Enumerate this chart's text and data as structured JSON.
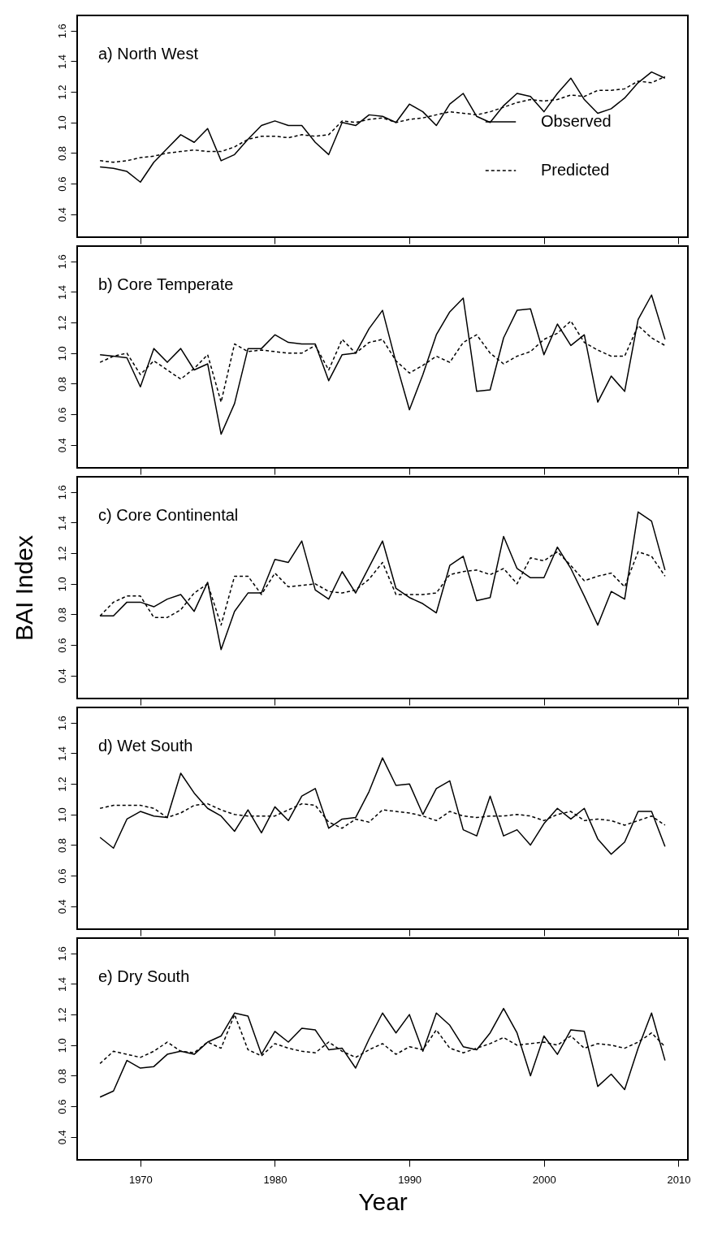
{
  "chart_data": [
    {
      "type": "line",
      "title": "a) North West",
      "x": [
        1967,
        1968,
        1969,
        1970,
        1971,
        1972,
        1973,
        1974,
        1975,
        1976,
        1977,
        1978,
        1979,
        1980,
        1981,
        1982,
        1983,
        1984,
        1985,
        1986,
        1987,
        1988,
        1989,
        1990,
        1991,
        1992,
        1993,
        1994,
        1995,
        1996,
        1997,
        1998,
        1999,
        2000,
        2001,
        2002,
        2003,
        2004,
        2005,
        2006,
        2007,
        2008,
        2009
      ],
      "xlim": [
        1965.3,
        2010.7
      ],
      "xticks": [
        1970,
        1980,
        1990,
        2000,
        2010
      ],
      "ylim": [
        0.25,
        1.7
      ],
      "yticks": [
        {
          "value": 0.4,
          "label": "0.4"
        },
        {
          "value": 0.6,
          "label": "0.6"
        },
        {
          "value": 0.8,
          "label": "0.8"
        },
        {
          "value": 1.0,
          "label": "1.0"
        },
        {
          "value": 1.2,
          "label": "1.2"
        },
        {
          "value": 1.4,
          "label": "1.4"
        },
        {
          "value": 1.6,
          "label": "1.6"
        }
      ],
      "tick_labels": "y",
      "legend": "right",
      "series": [
        {
          "name": "Observed",
          "color": "#000000",
          "line_style": "solid",
          "values": [
            0.71,
            0.7,
            0.68,
            0.61,
            0.74,
            0.83,
            0.92,
            0.87,
            0.96,
            0.75,
            0.79,
            0.89,
            0.98,
            1.01,
            0.98,
            0.98,
            0.87,
            0.79,
            1.0,
            0.98,
            1.05,
            1.04,
            1.0,
            1.12,
            1.07,
            0.98,
            1.12,
            1.19,
            1.04,
            1.0,
            1.11,
            1.19,
            1.17,
            1.07,
            1.19,
            1.29,
            1.15,
            1.06,
            1.09,
            1.16,
            1.26,
            1.33,
            1.29
          ]
        },
        {
          "name": "Predicted",
          "color": "#000000",
          "line_style": "dashed",
          "values": [
            0.75,
            0.74,
            0.75,
            0.77,
            0.78,
            0.8,
            0.81,
            0.82,
            0.81,
            0.81,
            0.84,
            0.89,
            0.91,
            0.91,
            0.9,
            0.92,
            0.91,
            0.92,
            1.01,
            1.0,
            1.02,
            1.03,
            1.0,
            1.02,
            1.03,
            1.05,
            1.07,
            1.06,
            1.05,
            1.07,
            1.1,
            1.13,
            1.15,
            1.14,
            1.15,
            1.18,
            1.17,
            1.21,
            1.21,
            1.22,
            1.27,
            1.26,
            1.3
          ]
        }
      ]
    },
    {
      "type": "line",
      "title": "b) Core Temperate",
      "x": [
        1967,
        1968,
        1969,
        1970,
        1971,
        1972,
        1973,
        1974,
        1975,
        1976,
        1977,
        1978,
        1979,
        1980,
        1981,
        1982,
        1983,
        1984,
        1985,
        1986,
        1987,
        1988,
        1989,
        1990,
        1991,
        1992,
        1993,
        1994,
        1995,
        1996,
        1997,
        1998,
        1999,
        2000,
        2001,
        2002,
        2003,
        2004,
        2005,
        2006,
        2007,
        2008,
        2009
      ],
      "xlim": [
        1965.3,
        2010.7
      ],
      "xticks": [
        1970,
        1980,
        1990,
        2000,
        2010
      ],
      "ylim": [
        0.25,
        1.7
      ],
      "yticks": [
        {
          "value": 0.4,
          "label": "0.4"
        },
        {
          "value": 0.6,
          "label": "0.6"
        },
        {
          "value": 0.8,
          "label": "0.8"
        },
        {
          "value": 1.0,
          "label": "1.0"
        },
        {
          "value": 1.2,
          "label": "1.2"
        },
        {
          "value": 1.4,
          "label": "1.4"
        },
        {
          "value": 1.6,
          "label": "1.6"
        }
      ],
      "tick_labels": "y",
      "series": [
        {
          "color": "#000000",
          "line_style": "solid",
          "values": [
            0.99,
            0.98,
            0.97,
            0.78,
            1.03,
            0.94,
            1.03,
            0.89,
            0.93,
            0.47,
            0.67,
            1.03,
            1.03,
            1.12,
            1.07,
            1.06,
            1.06,
            0.82,
            0.99,
            1.0,
            1.16,
            1.28,
            0.94,
            0.63,
            0.86,
            1.12,
            1.27,
            1.36,
            0.75,
            0.76,
            1.1,
            1.28,
            1.29,
            0.99,
            1.19,
            1.05,
            1.12,
            0.68,
            0.85,
            0.75,
            1.22,
            1.38,
            1.09
          ]
        },
        {
          "color": "#000000",
          "line_style": "dashed",
          "values": [
            0.94,
            0.98,
            1.0,
            0.86,
            0.95,
            0.89,
            0.83,
            0.9,
            0.99,
            0.68,
            1.06,
            1.01,
            1.02,
            1.01,
            1.0,
            1.0,
            1.05,
            0.89,
            1.09,
            1.0,
            1.07,
            1.09,
            0.95,
            0.87,
            0.92,
            0.98,
            0.94,
            1.07,
            1.12,
            1.0,
            0.93,
            0.98,
            1.01,
            1.09,
            1.13,
            1.21,
            1.07,
            1.02,
            0.98,
            0.98,
            1.18,
            1.1,
            1.05
          ]
        }
      ]
    },
    {
      "type": "line",
      "title": "c) Core Continental",
      "ylabel": "BAI Index",
      "x": [
        1967,
        1968,
        1969,
        1970,
        1971,
        1972,
        1973,
        1974,
        1975,
        1976,
        1977,
        1978,
        1979,
        1980,
        1981,
        1982,
        1983,
        1984,
        1985,
        1986,
        1987,
        1988,
        1989,
        1990,
        1991,
        1992,
        1993,
        1994,
        1995,
        1996,
        1997,
        1998,
        1999,
        2000,
        2001,
        2002,
        2003,
        2004,
        2005,
        2006,
        2007,
        2008,
        2009
      ],
      "xlim": [
        1965.3,
        2010.7
      ],
      "xticks": [
        1970,
        1980,
        1990,
        2000,
        2010
      ],
      "ylim": [
        0.25,
        1.7
      ],
      "yticks": [
        {
          "value": 0.4,
          "label": "0.4"
        },
        {
          "value": 0.6,
          "label": "0.6"
        },
        {
          "value": 0.8,
          "label": "0.8"
        },
        {
          "value": 1.0,
          "label": "1.0"
        },
        {
          "value": 1.2,
          "label": "1.2"
        },
        {
          "value": 1.4,
          "label": "1.4"
        },
        {
          "value": 1.6,
          "label": "1.6"
        }
      ],
      "tick_labels": "y",
      "series": [
        {
          "color": "#000000",
          "line_style": "solid",
          "values": [
            0.79,
            0.79,
            0.88,
            0.88,
            0.85,
            0.9,
            0.93,
            0.82,
            1.01,
            0.57,
            0.82,
            0.94,
            0.94,
            1.16,
            1.14,
            1.28,
            0.96,
            0.9,
            1.08,
            0.94,
            1.11,
            1.28,
            0.97,
            0.91,
            0.87,
            0.81,
            1.12,
            1.18,
            0.89,
            0.91,
            1.31,
            1.1,
            1.04,
            1.04,
            1.24,
            1.1,
            0.92,
            0.73,
            0.95,
            0.9,
            1.47,
            1.41,
            1.09
          ]
        },
        {
          "color": "#000000",
          "line_style": "dashed",
          "values": [
            0.79,
            0.88,
            0.92,
            0.92,
            0.78,
            0.78,
            0.83,
            0.94,
            1.0,
            0.73,
            1.05,
            1.05,
            0.93,
            1.07,
            0.98,
            0.99,
            1.0,
            0.95,
            0.94,
            0.96,
            1.03,
            1.14,
            0.93,
            0.93,
            0.93,
            0.94,
            1.06,
            1.08,
            1.09,
            1.06,
            1.1,
            1.0,
            1.17,
            1.15,
            1.21,
            1.12,
            1.02,
            1.05,
            1.07,
            0.98,
            1.21,
            1.18,
            1.05
          ]
        }
      ]
    },
    {
      "type": "line",
      "title": "d) Wet South",
      "x": [
        1967,
        1968,
        1969,
        1970,
        1971,
        1972,
        1973,
        1974,
        1975,
        1976,
        1977,
        1978,
        1979,
        1980,
        1981,
        1982,
        1983,
        1984,
        1985,
        1986,
        1987,
        1988,
        1989,
        1990,
        1991,
        1992,
        1993,
        1994,
        1995,
        1996,
        1997,
        1998,
        1999,
        2000,
        2001,
        2002,
        2003,
        2004,
        2005,
        2006,
        2007,
        2008,
        2009
      ],
      "xlim": [
        1965.3,
        2010.7
      ],
      "xticks": [
        1970,
        1980,
        1990,
        2000,
        2010
      ],
      "ylim": [
        0.25,
        1.7
      ],
      "yticks": [
        {
          "value": 0.4,
          "label": "0.4"
        },
        {
          "value": 0.6,
          "label": "0.6"
        },
        {
          "value": 0.8,
          "label": "0.8"
        },
        {
          "value": 1.0,
          "label": "1.0"
        },
        {
          "value": 1.2,
          "label": "1.2"
        },
        {
          "value": 1.4,
          "label": "1.4"
        },
        {
          "value": 1.6,
          "label": "1.6"
        }
      ],
      "tick_labels": "y",
      "series": [
        {
          "color": "#000000",
          "line_style": "solid",
          "values": [
            0.85,
            0.78,
            0.97,
            1.02,
            0.99,
            0.98,
            1.27,
            1.14,
            1.04,
            0.99,
            0.89,
            1.03,
            0.88,
            1.05,
            0.96,
            1.12,
            1.17,
            0.91,
            0.97,
            0.98,
            1.15,
            1.37,
            1.19,
            1.2,
            1.0,
            1.17,
            1.22,
            0.9,
            0.86,
            1.12,
            0.86,
            0.9,
            0.8,
            0.94,
            1.04,
            0.97,
            1.04,
            0.84,
            0.74,
            0.82,
            1.02,
            1.02,
            0.79
          ]
        },
        {
          "color": "#000000",
          "line_style": "dashed",
          "values": [
            1.04,
            1.06,
            1.06,
            1.06,
            1.04,
            0.98,
            1.01,
            1.06,
            1.07,
            1.03,
            1.0,
            0.99,
            0.99,
            0.99,
            1.03,
            1.07,
            1.06,
            0.95,
            0.91,
            0.97,
            0.95,
            1.03,
            1.02,
            1.01,
            0.99,
            0.96,
            1.02,
            0.99,
            0.98,
            0.99,
            0.99,
            1.0,
            0.99,
            0.96,
            1.0,
            1.02,
            0.96,
            0.97,
            0.96,
            0.93,
            0.96,
            0.99,
            0.93
          ]
        }
      ]
    },
    {
      "type": "line",
      "title": "e) Dry South",
      "xlabel": "Year",
      "x": [
        1967,
        1968,
        1969,
        1970,
        1971,
        1972,
        1973,
        1974,
        1975,
        1976,
        1977,
        1978,
        1979,
        1980,
        1981,
        1982,
        1983,
        1984,
        1985,
        1986,
        1987,
        1988,
        1989,
        1990,
        1991,
        1992,
        1993,
        1994,
        1995,
        1996,
        1997,
        1998,
        1999,
        2000,
        2001,
        2002,
        2003,
        2004,
        2005,
        2006,
        2007,
        2008,
        2009
      ],
      "xlim": [
        1965.3,
        2010.7
      ],
      "xticks": [
        1970,
        1980,
        1990,
        2000,
        2010
      ],
      "ylim": [
        0.25,
        1.7
      ],
      "yticks": [
        {
          "value": 0.4,
          "label": "0.4"
        },
        {
          "value": 0.6,
          "label": "0.6"
        },
        {
          "value": 0.8,
          "label": "0.8"
        },
        {
          "value": 1.0,
          "label": "1.0"
        },
        {
          "value": 1.2,
          "label": "1.2"
        },
        {
          "value": 1.4,
          "label": "1.4"
        },
        {
          "value": 1.6,
          "label": "1.6"
        }
      ],
      "series": [
        {
          "color": "#000000",
          "line_style": "solid",
          "values": [
            0.66,
            0.7,
            0.9,
            0.85,
            0.86,
            0.94,
            0.96,
            0.94,
            1.02,
            1.06,
            1.21,
            1.19,
            0.94,
            1.09,
            1.02,
            1.11,
            1.1,
            0.97,
            0.98,
            0.85,
            1.04,
            1.21,
            1.08,
            1.2,
            0.96,
            1.21,
            1.13,
            0.99,
            0.97,
            1.08,
            1.24,
            1.08,
            0.8,
            1.06,
            0.94,
            1.1,
            1.09,
            0.73,
            0.81,
            0.71,
            0.98,
            1.21,
            0.9
          ]
        },
        {
          "color": "#000000",
          "line_style": "dashed",
          "values": [
            0.88,
            0.96,
            0.94,
            0.92,
            0.96,
            1.02,
            0.96,
            0.95,
            1.02,
            0.98,
            1.2,
            0.97,
            0.93,
            1.01,
            0.98,
            0.96,
            0.95,
            1.02,
            0.96,
            0.92,
            0.97,
            1.01,
            0.94,
            0.99,
            0.97,
            1.1,
            0.98,
            0.95,
            0.98,
            1.01,
            1.05,
            1.0,
            1.01,
            1.02,
            1.0,
            1.06,
            0.98,
            1.01,
            1.0,
            0.98,
            1.02,
            1.08,
            0.99
          ]
        }
      ]
    }
  ]
}
